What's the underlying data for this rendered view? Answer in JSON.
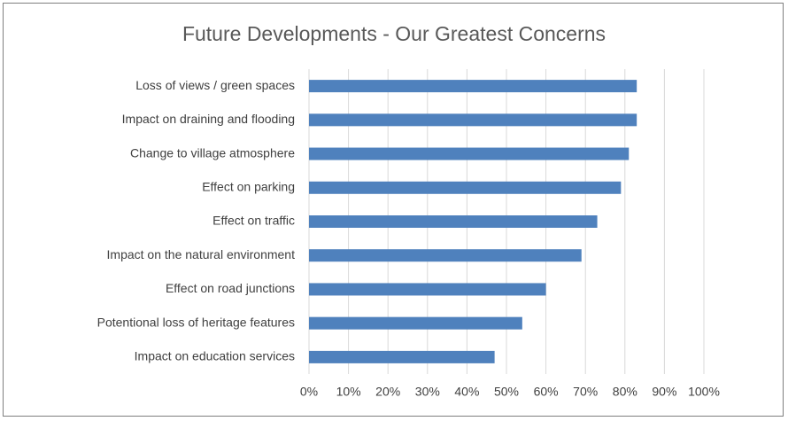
{
  "chart_data": {
    "type": "bar",
    "horizontal": true,
    "title": "Future Developments - Our Greatest Concerns",
    "categories": [
      "Loss of views / green spaces",
      "Impact on draining and flooding",
      "Change to village atmosphere",
      "Effect on parking",
      "Effect on traffic",
      "Impact on the natural environment",
      "Effect on road junctions",
      "Potentional loss of heritage features",
      "Impact on education services"
    ],
    "values": [
      83,
      83,
      81,
      79,
      73,
      69,
      60,
      54,
      47
    ],
    "color": "#4f81bd",
    "xlim": [
      0,
      100
    ],
    "xticks": [
      {
        "value": 0,
        "label": "0%"
      },
      {
        "value": 10,
        "label": "10%"
      },
      {
        "value": 20,
        "label": "20%"
      },
      {
        "value": 30,
        "label": "30%"
      },
      {
        "value": 40,
        "label": "40%"
      },
      {
        "value": 50,
        "label": "50%"
      },
      {
        "value": 60,
        "label": "60%"
      },
      {
        "value": 70,
        "label": "70%"
      },
      {
        "value": 80,
        "label": "80%"
      },
      {
        "value": 90,
        "label": "90%"
      },
      {
        "value": 100,
        "label": "100%"
      }
    ],
    "grid": true
  }
}
